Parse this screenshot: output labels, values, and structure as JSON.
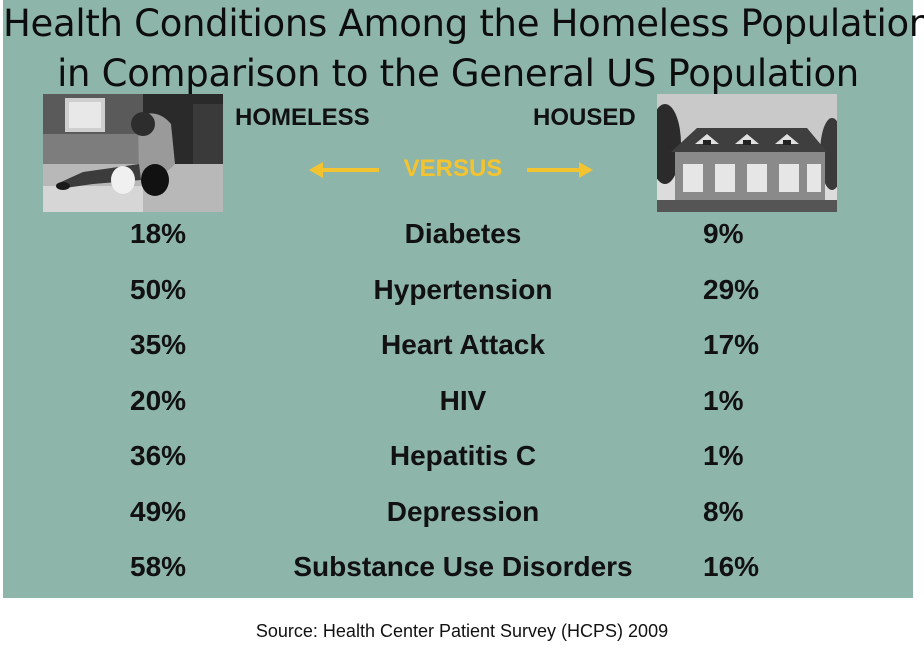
{
  "title_line1": "Health Conditions Among the Homeless Population",
  "title_line2": "in Comparison to the General US Population",
  "header": {
    "homeless": "HOMELESS",
    "housed": "HOUSED",
    "versus": "VERSUS"
  },
  "colors": {
    "background": "#8eb5aa",
    "accent": "#f4c430"
  },
  "chart_data": {
    "type": "table",
    "columns": [
      "HOMELESS",
      "",
      "HOUSED"
    ],
    "rows": [
      {
        "homeless": "18%",
        "condition": "Diabetes",
        "housed": "9%"
      },
      {
        "homeless": "50%",
        "condition": "Hypertension",
        "housed": "29%"
      },
      {
        "homeless": "35%",
        "condition": "Heart Attack",
        "housed": "17%"
      },
      {
        "homeless": "20%",
        "condition": "HIV",
        "housed": "1%"
      },
      {
        "homeless": "36%",
        "condition": "Hepatitis C",
        "housed": "1%"
      },
      {
        "homeless": "49%",
        "condition": "Depression",
        "housed": "8%"
      },
      {
        "homeless": "58%",
        "condition": "Substance Use Disorders",
        "housed": "16%"
      }
    ]
  },
  "source": "Source: Health Center Patient Survey (HCPS) 2009"
}
